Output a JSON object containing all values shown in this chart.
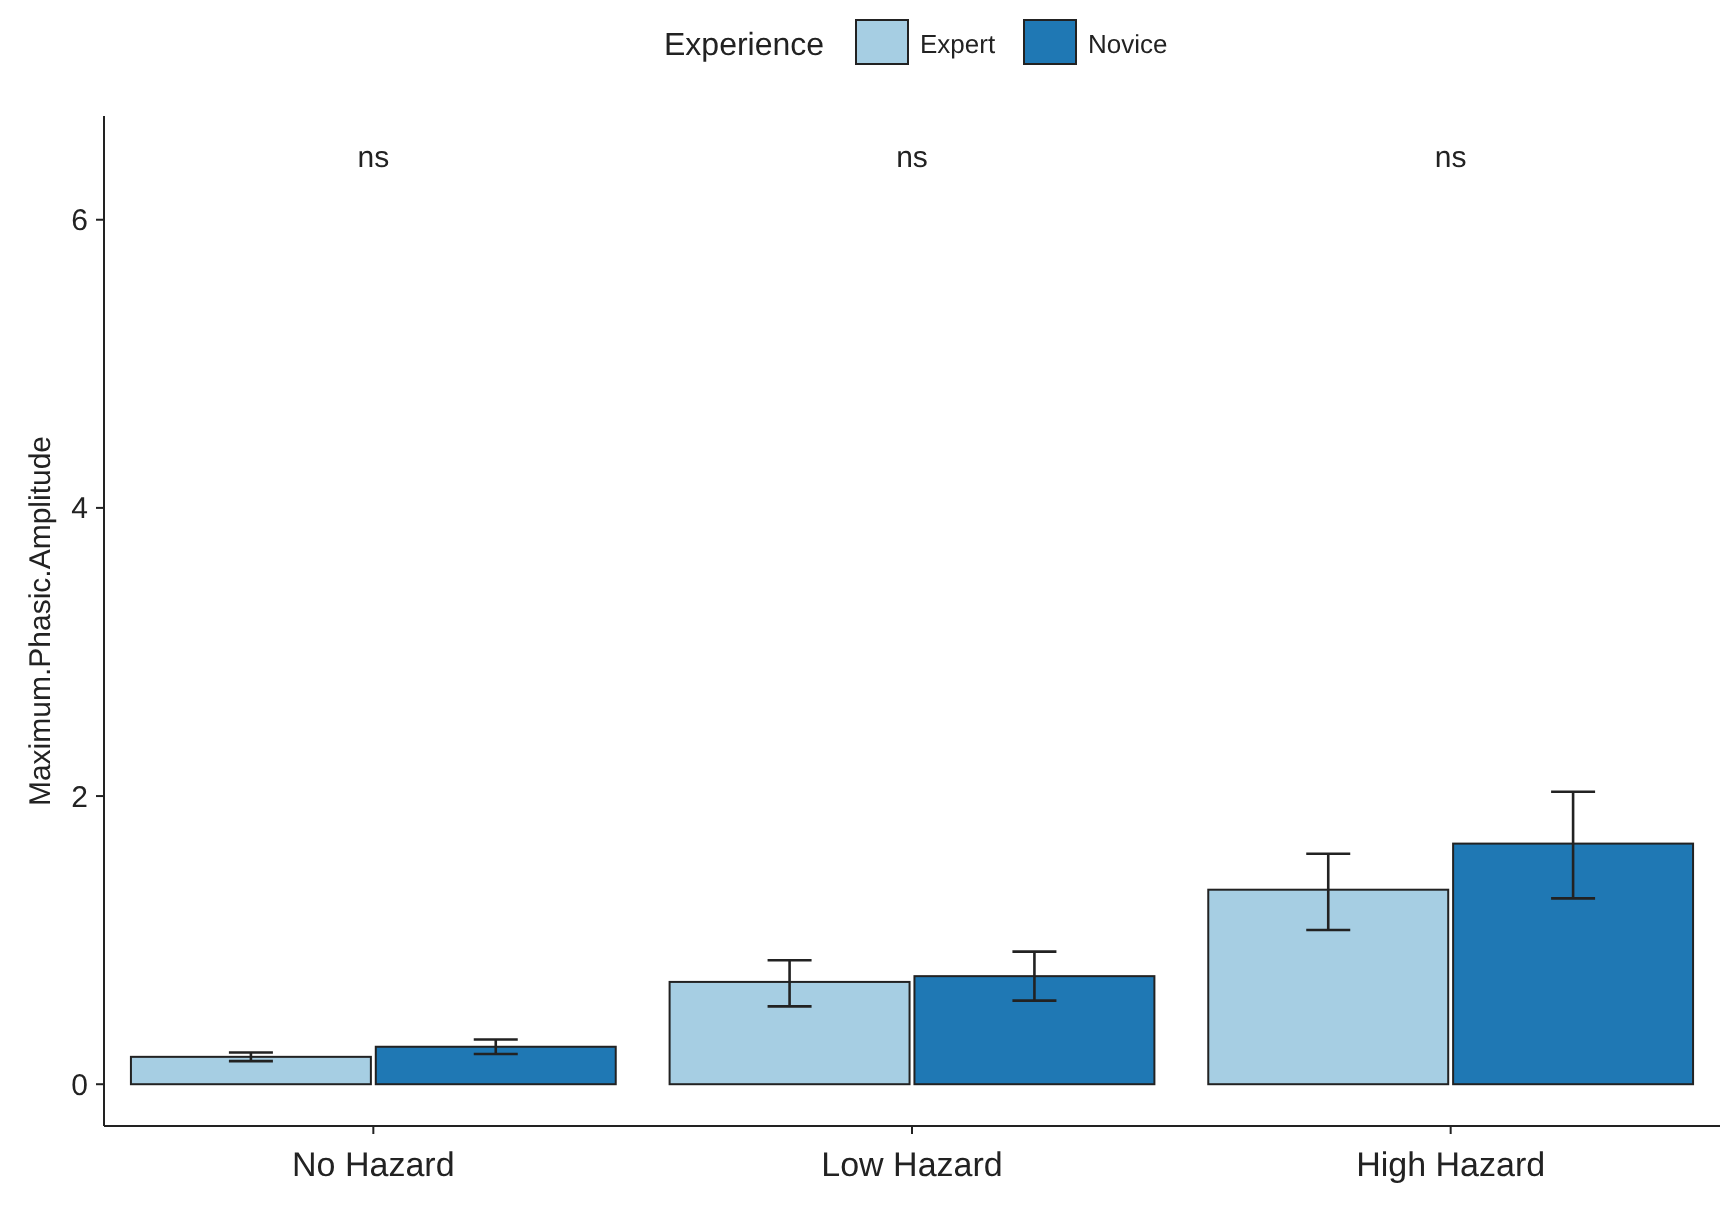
{
  "chart_data": {
    "type": "bar",
    "ylabel": "Maximum.Phasic.Amplitude",
    "legend_title": "Experience",
    "legend": "top",
    "categories": [
      "No Hazard",
      "Low Hazard",
      "High Hazard"
    ],
    "series": [
      {
        "name": "Expert",
        "color": "#a6cee3",
        "values": [
          0.19,
          0.71,
          1.35
        ],
        "errors": [
          [
            0.16,
            0.22
          ],
          [
            0.54,
            0.86
          ],
          [
            1.07,
            1.6
          ]
        ]
      },
      {
        "name": "Novice",
        "color": "#1f78b4",
        "values": [
          0.26,
          0.75,
          1.67
        ],
        "errors": [
          [
            0.21,
            0.31
          ],
          [
            0.58,
            0.92
          ],
          [
            1.29,
            2.03
          ]
        ]
      }
    ],
    "ylim": [
      -0.29,
      6.72
    ],
    "yticks": [
      0,
      2,
      4,
      6
    ],
    "grid": false,
    "annotations": [
      "ns",
      "ns",
      "ns"
    ]
  }
}
